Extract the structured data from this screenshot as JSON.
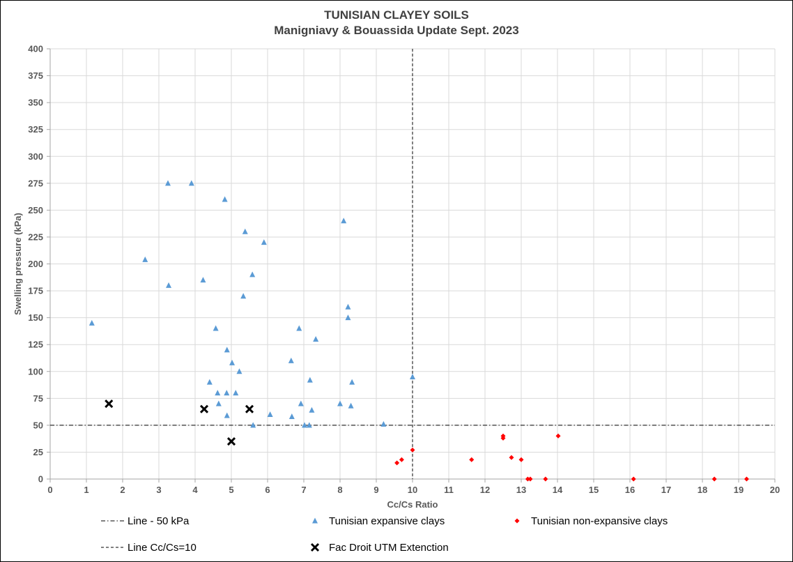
{
  "chart_data": {
    "type": "scatter",
    "title": "TUNISIAN CLAYEY SOILS",
    "subtitle": "Manigniavy & Bouassida Update Sept. 2023",
    "xlabel": "Cc/Cs Ratio",
    "ylabel": "Swelling pressure (kPa)",
    "xlim": [
      0,
      20
    ],
    "ylim": [
      0,
      400
    ],
    "xticks": [
      0,
      1,
      2,
      3,
      4,
      5,
      6,
      7,
      8,
      9,
      10,
      11,
      12,
      13,
      14,
      15,
      16,
      17,
      18,
      19,
      20
    ],
    "yticks": [
      0,
      25,
      50,
      75,
      100,
      125,
      150,
      175,
      200,
      225,
      250,
      275,
      300,
      325,
      350,
      375,
      400
    ],
    "grid": true,
    "legend_position": "bottom",
    "series": [
      {
        "name": "Tunisian expansive clays",
        "marker": "triangle",
        "color": "#5b9bd5",
        "points": [
          [
            1.15,
            145
          ],
          [
            2.62,
            204
          ],
          [
            3.25,
            275
          ],
          [
            3.27,
            180
          ],
          [
            3.9,
            275
          ],
          [
            4.22,
            185
          ],
          [
            4.4,
            90
          ],
          [
            4.57,
            140
          ],
          [
            4.62,
            80
          ],
          [
            4.65,
            70
          ],
          [
            4.82,
            260
          ],
          [
            4.87,
            80
          ],
          [
            4.88,
            59
          ],
          [
            4.88,
            120
          ],
          [
            5.02,
            108
          ],
          [
            5.12,
            80
          ],
          [
            5.22,
            100
          ],
          [
            5.33,
            170
          ],
          [
            5.38,
            230
          ],
          [
            5.58,
            190
          ],
          [
            5.6,
            50
          ],
          [
            5.9,
            220
          ],
          [
            6.07,
            60
          ],
          [
            6.65,
            110
          ],
          [
            6.67,
            58
          ],
          [
            6.87,
            140
          ],
          [
            6.92,
            70
          ],
          [
            7.02,
            50
          ],
          [
            7.15,
            50
          ],
          [
            7.17,
            92
          ],
          [
            7.22,
            64
          ],
          [
            7.33,
            130
          ],
          [
            8.0,
            70
          ],
          [
            8.1,
            240
          ],
          [
            8.22,
            160
          ],
          [
            8.22,
            150
          ],
          [
            8.3,
            68
          ],
          [
            8.33,
            90
          ],
          [
            9.2,
            51
          ],
          [
            10.0,
            95
          ]
        ]
      },
      {
        "name": "Tunisian non-expansive clays",
        "marker": "diamond",
        "color": "#ff0000",
        "points": [
          [
            9.57,
            15
          ],
          [
            9.7,
            18
          ],
          [
            10.0,
            27
          ],
          [
            11.63,
            18
          ],
          [
            12.5,
            40
          ],
          [
            12.5,
            38
          ],
          [
            12.73,
            20
          ],
          [
            13.0,
            18
          ],
          [
            13.18,
            0
          ],
          [
            13.25,
            0
          ],
          [
            13.67,
            0
          ],
          [
            14.02,
            40
          ],
          [
            16.1,
            0
          ],
          [
            18.33,
            0
          ],
          [
            19.22,
            0
          ]
        ]
      },
      {
        "name": "Fac Droit UTM Extenction",
        "marker": "cross",
        "color": "#000000",
        "points": [
          [
            1.62,
            70
          ],
          [
            4.25,
            65
          ],
          [
            5.5,
            65
          ],
          [
            5.0,
            35
          ]
        ]
      }
    ],
    "reference_lines": [
      {
        "name": "Line - 50 kPa",
        "orientation": "horizontal",
        "value": 50,
        "style": "dashdot"
      },
      {
        "name": "Line Cc/Cs=10",
        "orientation": "vertical",
        "value": 10,
        "style": "dashed"
      }
    ]
  }
}
